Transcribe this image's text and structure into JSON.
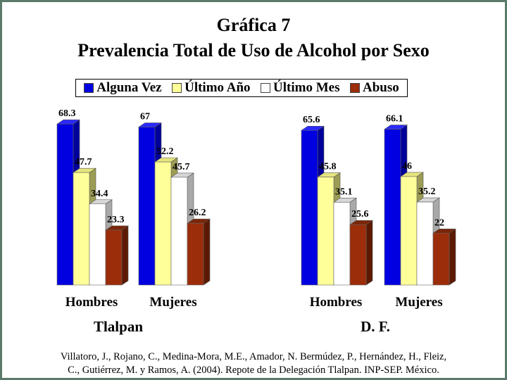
{
  "title": "Gráfica 7",
  "subtitle": "Prevalencia Total de Uso de Alcohol por Sexo",
  "legend": [
    {
      "label": "Alguna Vez",
      "color": "#0000e0"
    },
    {
      "label": "Último Año",
      "color": "#ffff99"
    },
    {
      "label": "Último Mes",
      "color": "#ffffff"
    },
    {
      "label": "Abuso",
      "color": "#9b2d0a"
    }
  ],
  "footer": {
    "line1": "Villatoro, J., Rojano, C., Medina-Mora, M.E., Amador, N. Bermúdez, P., Hernández, H., Fleiz,",
    "line2": "C., Gutiérrez, M. y Ramos, A. (2004). Repote de la Delegación Tlalpan. INP-SEP. México."
  },
  "chart_data": [
    {
      "type": "bar",
      "title": "Tlalpan",
      "categories": [
        "Hombres",
        "Mujeres"
      ],
      "series": [
        {
          "name": "Alguna Vez",
          "values": [
            68.3,
            67
          ]
        },
        {
          "name": "Último Año",
          "values": [
            47.7,
            52.2
          ]
        },
        {
          "name": "Último Mes",
          "values": [
            34.4,
            45.7
          ]
        },
        {
          "name": "Abuso",
          "values": [
            23.3,
            26.2
          ]
        }
      ],
      "ylim": [
        0,
        75
      ]
    },
    {
      "type": "bar",
      "title": "D. F.",
      "categories": [
        "Hombres",
        "Mujeres"
      ],
      "series": [
        {
          "name": "Alguna Vez",
          "values": [
            65.6,
            66.1
          ]
        },
        {
          "name": "Último Año",
          "values": [
            45.8,
            46
          ]
        },
        {
          "name": "Último Mes",
          "values": [
            35.1,
            35.2
          ]
        },
        {
          "name": "Abuso",
          "values": [
            25.6,
            22
          ]
        }
      ],
      "ylim": [
        0,
        75
      ]
    }
  ]
}
